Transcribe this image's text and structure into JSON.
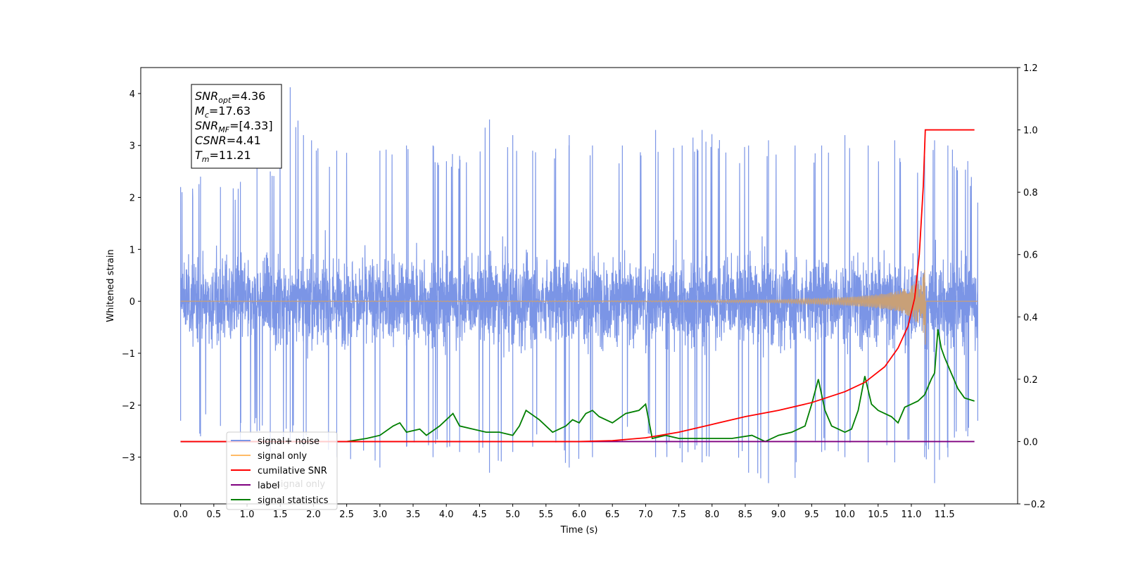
{
  "chart_data": {
    "type": "line",
    "xlabel": "Time (s)",
    "ylabel_left": "Whitened strain",
    "ylabel_right": "",
    "xlim": [
      -0.6,
      12.6
    ],
    "ylim_left": [
      -3.9,
      4.5
    ],
    "ylim_right": [
      -0.2,
      1.2
    ],
    "x_ticks": [
      "0.0",
      "0.5",
      "1.0",
      "1.5",
      "2.0",
      "2.5",
      "3.0",
      "3.5",
      "4.0",
      "4.5",
      "5.0",
      "5.5",
      "6.0",
      "6.5",
      "7.0",
      "7.5",
      "8.0",
      "8.5",
      "9.0",
      "9.5",
      "10.0",
      "10.5",
      "11.0",
      "11.5"
    ],
    "y_ticks_left": [
      "−3",
      "−2",
      "−1",
      "0",
      "1",
      "2",
      "3",
      "4"
    ],
    "y_ticks_right": [
      "−0.2",
      "0.0",
      "0.2",
      "0.4",
      "0.6",
      "0.8",
      "1.0",
      "1.2"
    ],
    "grid": false,
    "legend_position": "lower-left",
    "annotation": {
      "lines": [
        {
          "sym": "SNR",
          "sub": "opt",
          "val": "=4.36"
        },
        {
          "sym": "M",
          "sub": "c",
          "val": "=17.63"
        },
        {
          "sym": "SNR",
          "sub": "MF",
          "val": "=[4.33]"
        },
        {
          "sym": "CSNR",
          "sub": "",
          "val": "=4.41"
        },
        {
          "sym": "T",
          "sub": "m",
          "val": "=11.21"
        }
      ]
    },
    "legend": [
      {
        "name": "signal+ noise",
        "color": "#7b95e6"
      },
      {
        "name": "signal only",
        "color": "#ffbb66"
      },
      {
        "name": "cumilative SNR",
        "color": "#ff0000"
      },
      {
        "name": "label",
        "color": "#7f007f"
      },
      {
        "name": "signal statistics",
        "color": "#007f00"
      }
    ],
    "ghost_legend_text": "signal only",
    "series": [
      {
        "name": "signal+ noise",
        "axis": "left",
        "color": "#7b95e6",
        "x_range": [
          0.0,
          12.0
        ],
        "envelope_typical": [
          -1.7,
          1.7
        ],
        "peaks_x": [
          0.0,
          0.3,
          0.6,
          0.9,
          1.15,
          1.35,
          1.65,
          1.85,
          2.35,
          3.0,
          3.4,
          3.8,
          4.2,
          4.65,
          5.0,
          5.3,
          5.85,
          6.2,
          6.65,
          7.15,
          7.55,
          7.85,
          8.55,
          8.85,
          9.25,
          9.65,
          10.0,
          10.35,
          10.75,
          11.2,
          11.35,
          11.55,
          11.85,
          12.0
        ],
        "peaks_hi": [
          2.2,
          2.4,
          2.2,
          2.3,
          2.8,
          2.5,
          4.12,
          3.2,
          2.9,
          2.9,
          3.0,
          3.0,
          2.8,
          3.5,
          3.2,
          2.9,
          3.2,
          3.0,
          3.0,
          3.3,
          3.0,
          3.3,
          3.0,
          3.1,
          3.0,
          3.0,
          3.2,
          3.0,
          3.1,
          2.8,
          3.1,
          3.0,
          2.7,
          1.9
        ],
        "peaks_lo": [
          -2.3,
          -2.6,
          -2.4,
          -2.7,
          -2.5,
          -2.9,
          -2.7,
          -2.8,
          -3.0,
          -3.2,
          -2.8,
          -3.0,
          -2.9,
          -3.3,
          -2.9,
          -2.8,
          -3.2,
          -3.0,
          -2.7,
          -3.0,
          -3.1,
          -3.1,
          -3.3,
          -3.5,
          -3.4,
          -2.9,
          -3.0,
          -3.1,
          -3.1,
          -3.0,
          -3.5,
          -3.0,
          -2.6,
          -2.3
        ]
      },
      {
        "name": "signal only",
        "axis": "left",
        "color": "#c8a078",
        "x": [
          0.0,
          7.0,
          8.0,
          9.0,
          9.5,
          10.0,
          10.3,
          10.6,
          10.8,
          11.0,
          11.1,
          11.2,
          11.21,
          11.22,
          12.0
        ],
        "amp": [
          0.0,
          0.01,
          0.02,
          0.03,
          0.05,
          0.08,
          0.11,
          0.15,
          0.2,
          0.3,
          0.45,
          0.65,
          0.85,
          0.0,
          0.0
        ]
      },
      {
        "name": "cumilative SNR",
        "axis": "right",
        "color": "#ff0000",
        "x": [
          0.0,
          6.0,
          6.5,
          7.0,
          7.5,
          8.0,
          8.5,
          9.0,
          9.5,
          10.0,
          10.3,
          10.6,
          10.8,
          10.95,
          11.05,
          11.12,
          11.18,
          11.21,
          11.22,
          11.95
        ],
        "values": [
          0.0,
          0.0,
          0.003,
          0.012,
          0.03,
          0.055,
          0.08,
          0.1,
          0.125,
          0.16,
          0.19,
          0.24,
          0.3,
          0.37,
          0.46,
          0.6,
          0.82,
          1.0,
          1.0,
          1.0
        ]
      },
      {
        "name": "label",
        "axis": "right",
        "color": "#7f007f",
        "x": [
          0.0,
          11.95
        ],
        "values": [
          0.0,
          0.0
        ]
      },
      {
        "name": "signal statistics",
        "axis": "right",
        "color": "#007f00",
        "x": [
          0.0,
          2.5,
          2.8,
          3.0,
          3.2,
          3.3,
          3.4,
          3.6,
          3.7,
          3.9,
          4.0,
          4.1,
          4.2,
          4.4,
          4.6,
          4.8,
          5.0,
          5.1,
          5.2,
          5.4,
          5.6,
          5.8,
          5.9,
          6.0,
          6.1,
          6.2,
          6.3,
          6.5,
          6.7,
          6.9,
          7.0,
          7.1,
          7.3,
          7.5,
          7.8,
          8.0,
          8.3,
          8.6,
          8.8,
          9.0,
          9.2,
          9.3,
          9.4,
          9.5,
          9.6,
          9.7,
          9.8,
          9.9,
          10.0,
          10.1,
          10.2,
          10.3,
          10.4,
          10.5,
          10.7,
          10.8,
          10.9,
          11.0,
          11.1,
          11.2,
          11.3,
          11.35,
          11.4,
          11.45,
          11.5,
          11.6,
          11.7,
          11.8,
          11.95
        ],
        "values": [
          0.0,
          0.0,
          0.01,
          0.02,
          0.05,
          0.06,
          0.03,
          0.04,
          0.02,
          0.05,
          0.07,
          0.09,
          0.05,
          0.04,
          0.03,
          0.03,
          0.02,
          0.05,
          0.1,
          0.07,
          0.03,
          0.05,
          0.07,
          0.06,
          0.09,
          0.1,
          0.08,
          0.06,
          0.09,
          0.1,
          0.12,
          0.01,
          0.02,
          0.01,
          0.01,
          0.01,
          0.01,
          0.02,
          0.0,
          0.02,
          0.03,
          0.04,
          0.05,
          0.12,
          0.2,
          0.1,
          0.05,
          0.04,
          0.03,
          0.04,
          0.1,
          0.21,
          0.12,
          0.1,
          0.08,
          0.06,
          0.11,
          0.12,
          0.13,
          0.15,
          0.2,
          0.22,
          0.36,
          0.3,
          0.27,
          0.22,
          0.17,
          0.14,
          0.13
        ]
      }
    ]
  }
}
